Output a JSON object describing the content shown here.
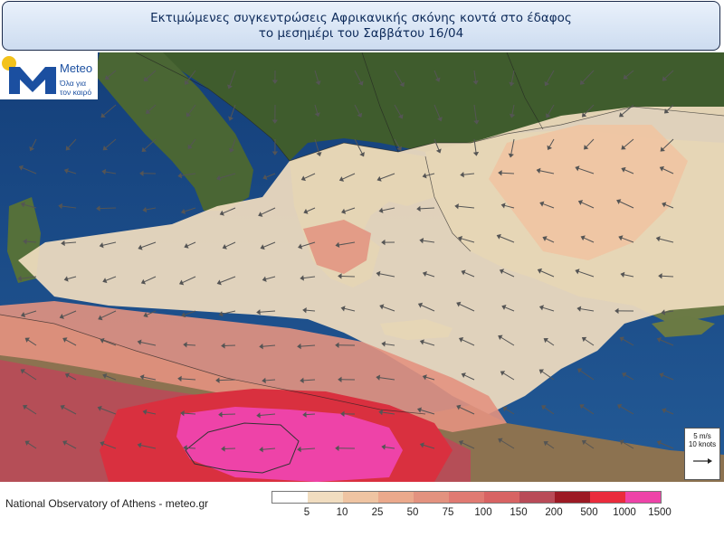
{
  "header": {
    "title_line1": "Εκτιμώμενες συγκεντρώσεις Αφρικανικής σκόνης κοντά στο έδαφος",
    "title_line2": "το μεσημέρι του Σαββάτου 16/04"
  },
  "logo": {
    "brand": "Meteo",
    "tagline": "Όλα για τον καιρό"
  },
  "wind_reference": {
    "speed_ms": "5 m/s",
    "speed_knots": "10 knots"
  },
  "footer": {
    "credit": "National Observatory of Athens - meteo.gr"
  },
  "legend": {
    "labels": [
      "5",
      "10",
      "25",
      "50",
      "75",
      "100",
      "150",
      "200",
      "500",
      "1000",
      "1500"
    ],
    "colors": [
      "#ffffff",
      "#f1ddc0",
      "#efc4a2",
      "#eba98c",
      "#e3927f",
      "#e07a72",
      "#d86363",
      "#b94b58",
      "#9c1a24",
      "#ea2b3c",
      "#ee43a8"
    ]
  },
  "map_colors": {
    "sea": "#1f4f8a",
    "land": "#3e5a2e",
    "dust_light": "#f1ddc0",
    "dust_medium": "#e3927f",
    "dust_heavy": "#b94b58",
    "dust_max": "#ee43a8"
  }
}
